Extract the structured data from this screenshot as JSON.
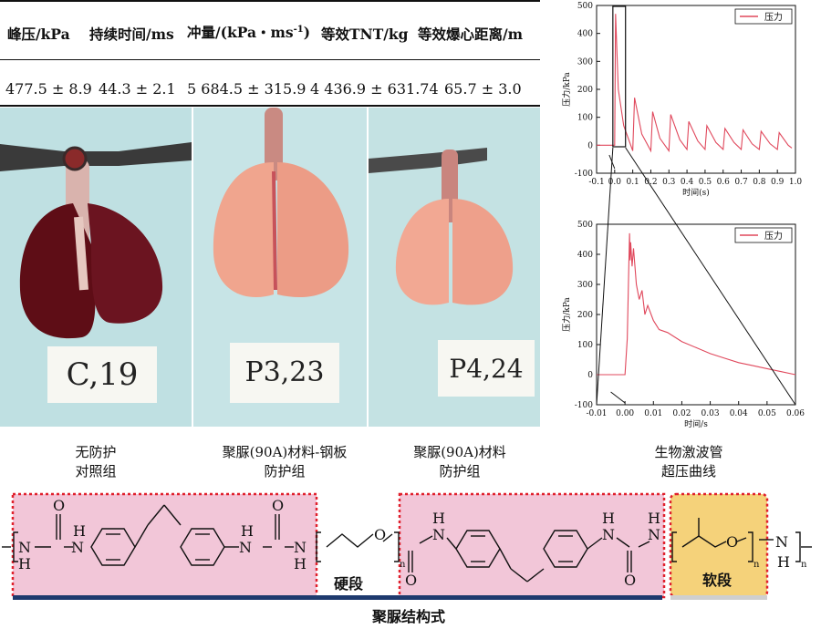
{
  "table": {
    "headers": [
      "峰压/kPa",
      "持续时间/ms",
      "冲量/(kPa・ms",
      "等效TNT/kg",
      "等效爆心距离/m"
    ],
    "impulse_superscript": "-1",
    "impulse_suffix": ")",
    "values": [
      "477.5 ± 8.9",
      "44.3 ± 2.1",
      "5 684.5 ± 315.9",
      "4 436.9 ± 631.74",
      "65.7 ± 3.0"
    ]
  },
  "photos": [
    {
      "card": "C,19",
      "caption_line1": "无防护",
      "caption_line2": "对照组"
    },
    {
      "card": "P3,23",
      "caption_line1": "聚脲(90A)材料-钢板",
      "caption_line2": "防护组"
    },
    {
      "card": "P4,24",
      "caption_line1": "聚脲(90A)材料",
      "caption_line2": "防护组"
    }
  ],
  "curve_caption": {
    "line1": "生物激波管",
    "line2": "超压曲线"
  },
  "structure": {
    "hard_label": "硬段",
    "soft_label": "软段",
    "title": "聚脲结构式",
    "colors": {
      "hard": "#f2c6d8",
      "soft": "#f5d27a",
      "border": "#e0202c",
      "baseline": "#1e3a6e"
    }
  },
  "chart_data": [
    {
      "type": "line",
      "title": "",
      "xlabel": "时间(s)",
      "ylabel": "压力/kPa",
      "xlim": [
        -0.1,
        1.0
      ],
      "ylim": [
        -100,
        500
      ],
      "xticks": [
        "-0.1",
        "0.0",
        "0.1",
        "0.2",
        "0.3",
        "0.4",
        "0.5",
        "0.6",
        "0.7",
        "0.8",
        "0.9",
        "1.0"
      ],
      "yticks": [
        "-100",
        "0",
        "100",
        "200",
        "300",
        "400",
        "500"
      ],
      "legend": "top-right",
      "series": [
        {
          "name": "压力",
          "color": "#e0485c",
          "x": [
            -0.1,
            0.0,
            0.005,
            0.02,
            0.05,
            0.1,
            0.11,
            0.15,
            0.2,
            0.21,
            0.25,
            0.3,
            0.31,
            0.36,
            0.4,
            0.41,
            0.46,
            0.5,
            0.51,
            0.56,
            0.6,
            0.61,
            0.66,
            0.7,
            0.71,
            0.76,
            0.8,
            0.81,
            0.86,
            0.9,
            0.91,
            0.96,
            0.98
          ],
          "y": [
            0,
            0,
            470,
            200,
            70,
            -20,
            170,
            40,
            -20,
            120,
            25,
            -20,
            110,
            20,
            -15,
            85,
            15,
            -15,
            70,
            10,
            -15,
            60,
            10,
            -15,
            55,
            5,
            -15,
            50,
            5,
            -15,
            45,
            0,
            -10
          ]
        }
      ]
    },
    {
      "type": "line",
      "title": "",
      "xlabel": "时间/s",
      "ylabel": "压力/kPa",
      "xlim": [
        -0.01,
        0.06
      ],
      "ylim": [
        -100,
        500
      ],
      "xticks": [
        "-0.01",
        "0.00",
        "0.01",
        "0.02",
        "0.03",
        "0.04",
        "0.05",
        "0.06"
      ],
      "yticks": [
        "-100",
        "0",
        "100",
        "200",
        "300",
        "400",
        "500"
      ],
      "legend": "top-right",
      "series": [
        {
          "name": "压力",
          "color": "#e0485c",
          "x": [
            -0.01,
            -0.0005,
            0.0,
            0.0008,
            0.0012,
            0.0016,
            0.0018,
            0.002,
            0.0025,
            0.003,
            0.004,
            0.005,
            0.006,
            0.007,
            0.008,
            0.01,
            0.012,
            0.015,
            0.02,
            0.025,
            0.03,
            0.035,
            0.04,
            0.045,
            0.05,
            0.055,
            0.06
          ],
          "y": [
            0,
            0,
            0,
            120,
            300,
            470,
            380,
            440,
            360,
            420,
            300,
            250,
            280,
            200,
            230,
            180,
            150,
            140,
            110,
            90,
            70,
            55,
            40,
            30,
            20,
            10,
            0
          ]
        }
      ]
    }
  ]
}
